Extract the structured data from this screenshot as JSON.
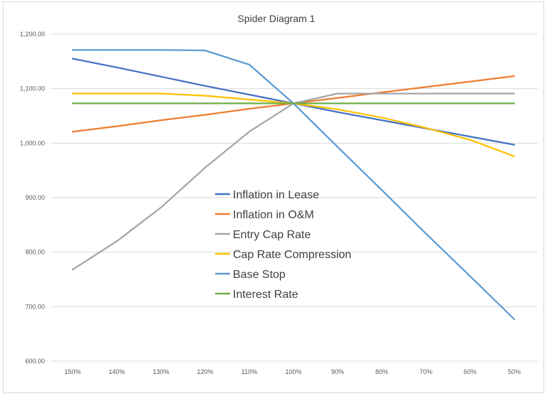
{
  "chart_data": {
    "type": "line",
    "title": "Spider Diagram 1",
    "categories": [
      "150%",
      "140%",
      "130%",
      "120%",
      "110%",
      "100%",
      "90%",
      "80%",
      "70%",
      "60%",
      "50%"
    ],
    "ylim": [
      600,
      1200
    ],
    "yticks": [
      "600.00",
      "700.00",
      "800.00",
      "900.00",
      "1,000.00",
      "1,100.00",
      "1,200.00"
    ],
    "grid": "horizontal",
    "legend_position": "inside-center",
    "series": [
      {
        "name": "Inflation in Lease",
        "color": "#4472C4",
        "values": [
          1155,
          1139,
          1122,
          1105,
          1089,
          1073,
          1057,
          1042,
          1027,
          1012,
          997
        ]
      },
      {
        "name": "Inflation in O&M",
        "color": "#ED7D31",
        "values": [
          1021,
          1031,
          1042,
          1052,
          1063,
          1073,
          1083,
          1093,
          1103,
          1113,
          1123
        ]
      },
      {
        "name": "Entry Cap Rate",
        "color": "#A5A5A5",
        "values": [
          768,
          820,
          882,
          955,
          1021,
          1073,
          1091,
          1091,
          1091,
          1091,
          1091
        ]
      },
      {
        "name": "Cap Rate Compression",
        "color": "#FFC000",
        "values": [
          1091,
          1091,
          1091,
          1087,
          1080,
          1073,
          1062,
          1047,
          1028,
          1006,
          976
        ]
      },
      {
        "name": "Base Stop",
        "color": "#5B9BD5",
        "values": [
          1171,
          1171,
          1171,
          1170,
          1144,
          1073,
          993,
          914,
          834,
          756,
          677
        ]
      },
      {
        "name": "Interest Rate",
        "color": "#70AD47",
        "values": [
          1073,
          1073,
          1073,
          1073,
          1073,
          1073,
          1073,
          1073,
          1073,
          1073,
          1073
        ]
      }
    ]
  }
}
